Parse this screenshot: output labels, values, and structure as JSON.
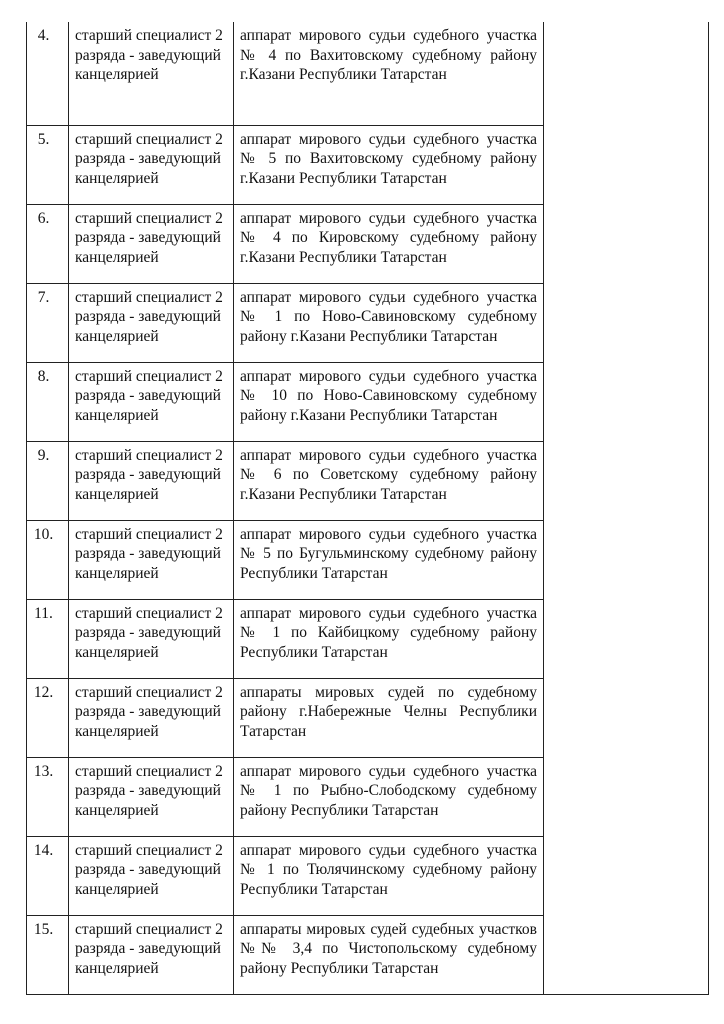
{
  "rows": [
    {
      "num": "4.",
      "position": "старший специалист 2 разряда - заведующий канцелярией",
      "description": "аппарат мирового судьи судебного участка № 4 по Вахитовскому судебному району г.Казани Республики Татарстан"
    },
    {
      "num": "5.",
      "position": "старший специалист 2 разряда - заведующий канцелярией",
      "description": "аппарат мирового судьи судебного участка № 5 по Вахитовскому судебному району г.Казани Республики Татарстан"
    },
    {
      "num": "6.",
      "position": "старший специалист 2 разряда - заведующий канцелярией",
      "description": "аппарат мирового судьи судебного участка № 4 по Кировскому судебному району г.Казани Республики Татарстан"
    },
    {
      "num": "7.",
      "position": "старший специалист 2 разряда - заведующий канцелярией",
      "description": "аппарат мирового судьи судебного участка № 1 по Ново-Савиновскому судебному району г.Казани Республики Татарстан"
    },
    {
      "num": "8.",
      "position": "старший специалист 2 разряда - заведующий канцелярией",
      "description": "аппарат мирового судьи судебного участка № 10 по Ново-Савиновскому судебному району г.Казани Республики Татарстан"
    },
    {
      "num": "9.",
      "position": "старший специалист 2 разряда - заведующий канцелярией",
      "description": "аппарат мирового судьи судебного участка № 6 по Советскому судебному району г.Казани Республики Татарстан"
    },
    {
      "num": "10.",
      "position": "старший специалист 2 разряда - заведующий канцелярией",
      "description": "аппарат мирового судьи судебного участка № 5 по Бугульминскому судебному району Республики Татарстан"
    },
    {
      "num": "11.",
      "position": "старший специалист 2 разряда - заведующий канцелярией",
      "description": "аппарат мирового судьи судебного участка № 1 по Кайбицкому судебному району Республики Татарстан"
    },
    {
      "num": "12.",
      "position": "старший специалист 2 разряда - заведующий канцелярией",
      "description": "аппараты мировых судей по судебному району г.Набережные Челны Республики Татарстан"
    },
    {
      "num": "13.",
      "position": "старший специалист 2 разряда - заведующий канцелярией",
      "description": "аппарат мирового судьи судебного участка № 1 по Рыбно-Слободскому судебному району Республики Татарстан"
    },
    {
      "num": "14.",
      "position": "старший специалист 2 разряда - заведующий канцелярией",
      "description": "аппарат мирового судьи судебного участка № 1 по Тюлячинскому судебному району Республики Татарстан"
    },
    {
      "num": "15.",
      "position": "старший специалист 2 разряда - заведующий канцелярией",
      "description": "аппараты мировых судей судебных участков №№ 3,4 по Чистопольскому судебному району Республики Татарстан"
    }
  ]
}
